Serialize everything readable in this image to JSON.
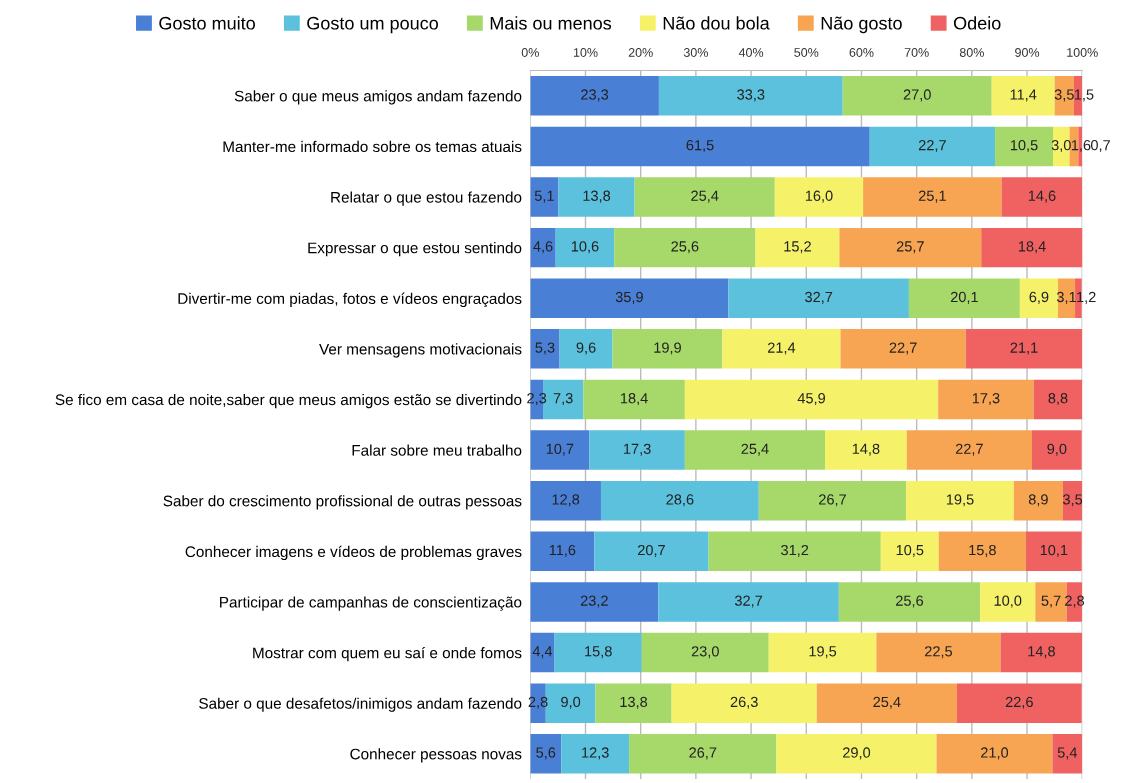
{
  "chart_data": {
    "type": "bar",
    "orientation": "horizontal",
    "stacked": true,
    "categories": [
      "Saber o que meus amigos andam fazendo",
      "Manter-me informado sobre os temas atuais",
      "Relatar o que estou fazendo",
      "Expressar o que estou sentindo",
      "Divertir-me com piadas, fotos e vídeos engraçados",
      "Ver mensagens motivacionais",
      "Se fico em casa de noite,saber que meus amigos estão se divertindo",
      "Falar sobre meu trabalho",
      "Saber do crescimento profissional de outras pessoas",
      "Conhecer imagens e vídeos de problemas graves",
      "Participar de campanhas de conscientização",
      "Mostrar com quem eu saí e onde fomos",
      "Saber o que desafetos/inimigos andam fazendo",
      "Conhecer pessoas novas"
    ],
    "series": [
      {
        "name": "Gosto muito",
        "color": "#4a7fd6",
        "values": [
          23.3,
          61.5,
          5.1,
          4.6,
          35.9,
          5.3,
          2.3,
          10.7,
          12.8,
          11.6,
          23.2,
          4.4,
          2.8,
          5.6
        ],
        "value_labels": [
          "23,3",
          "61,5",
          "5,1",
          "4,6",
          "35,9",
          "5,3",
          "2,3",
          "10,7",
          "12,8",
          "11,6",
          "23,2",
          "4,4",
          "2,8",
          "5,6"
        ]
      },
      {
        "name": "Gosto um pouco",
        "color": "#5bc1dc",
        "values": [
          33.3,
          22.7,
          13.8,
          10.6,
          32.7,
          9.6,
          7.3,
          17.3,
          28.6,
          20.7,
          32.7,
          15.8,
          9.0,
          12.3
        ],
        "value_labels": [
          "33,3",
          "22,7",
          "13,8",
          "10,6",
          "32,7",
          "9,6",
          "7,3",
          "17,3",
          "28,6",
          "20,7",
          "32,7",
          "15,8",
          "9,0",
          "12,3"
        ]
      },
      {
        "name": "Mais ou menos",
        "color": "#a6d96a",
        "values": [
          27.0,
          10.5,
          25.4,
          25.6,
          20.1,
          19.9,
          18.4,
          25.4,
          26.7,
          31.2,
          25.6,
          23.0,
          13.8,
          26.7
        ],
        "value_labels": [
          "27,0",
          "10,5",
          "25,4",
          "25,6",
          "20,1",
          "19,9",
          "18,4",
          "25,4",
          "26,7",
          "31,2",
          "25,6",
          "23,0",
          "13,8",
          "26,7"
        ]
      },
      {
        "name": "Não dou bola",
        "color": "#f5f26a",
        "values": [
          11.4,
          3.0,
          16.0,
          15.2,
          6.9,
          21.4,
          45.9,
          14.8,
          19.5,
          10.5,
          10.0,
          19.5,
          26.3,
          29.0
        ],
        "value_labels": [
          "11,4",
          "3,0",
          "16,0",
          "15,2",
          "6,9",
          "21,4",
          "45,9",
          "14,8",
          "19,5",
          "10,5",
          "10,0",
          "19,5",
          "26,3",
          "29,0"
        ]
      },
      {
        "name": "Não gosto",
        "color": "#f7a552",
        "values": [
          3.5,
          1.6,
          25.1,
          25.7,
          3.1,
          22.7,
          17.3,
          22.7,
          8.9,
          15.8,
          5.7,
          22.5,
          25.4,
          21.0
        ],
        "value_labels": [
          "3,5",
          "1,6",
          "25,1",
          "25,7",
          "3,1",
          "22,7",
          "17,3",
          "22,7",
          "8,9",
          "15,8",
          "5,7",
          "22,5",
          "25,4",
          "21,0"
        ]
      },
      {
        "name": "Odeio",
        "color": "#f06262",
        "values": [
          1.5,
          0.7,
          14.6,
          18.4,
          1.2,
          21.1,
          8.8,
          9.0,
          3.5,
          10.1,
          2.8,
          14.8,
          22.6,
          5.4
        ],
        "value_labels": [
          "1,5",
          "0,7",
          "14,6",
          "18,4",
          "1,2",
          "21,1",
          "8,8",
          "9,0",
          "3,5",
          "10,1",
          "2,8",
          "14,8",
          "22,6",
          "5,4"
        ]
      }
    ],
    "xlim": [
      0,
      100
    ],
    "xticks": [
      {
        "value": 0,
        "label": "0%"
      },
      {
        "value": 10,
        "label": "10%"
      },
      {
        "value": 20,
        "label": "20%"
      },
      {
        "value": 30,
        "label": "30%"
      },
      {
        "value": 40,
        "label": "40%"
      },
      {
        "value": 50,
        "label": "50%"
      },
      {
        "value": 60,
        "label": "60%"
      },
      {
        "value": 70,
        "label": "70%"
      },
      {
        "value": 80,
        "label": "80%"
      },
      {
        "value": 90,
        "label": "90%"
      },
      {
        "value": 100,
        "label": "100%"
      }
    ],
    "grid": "x",
    "legend": "top"
  }
}
